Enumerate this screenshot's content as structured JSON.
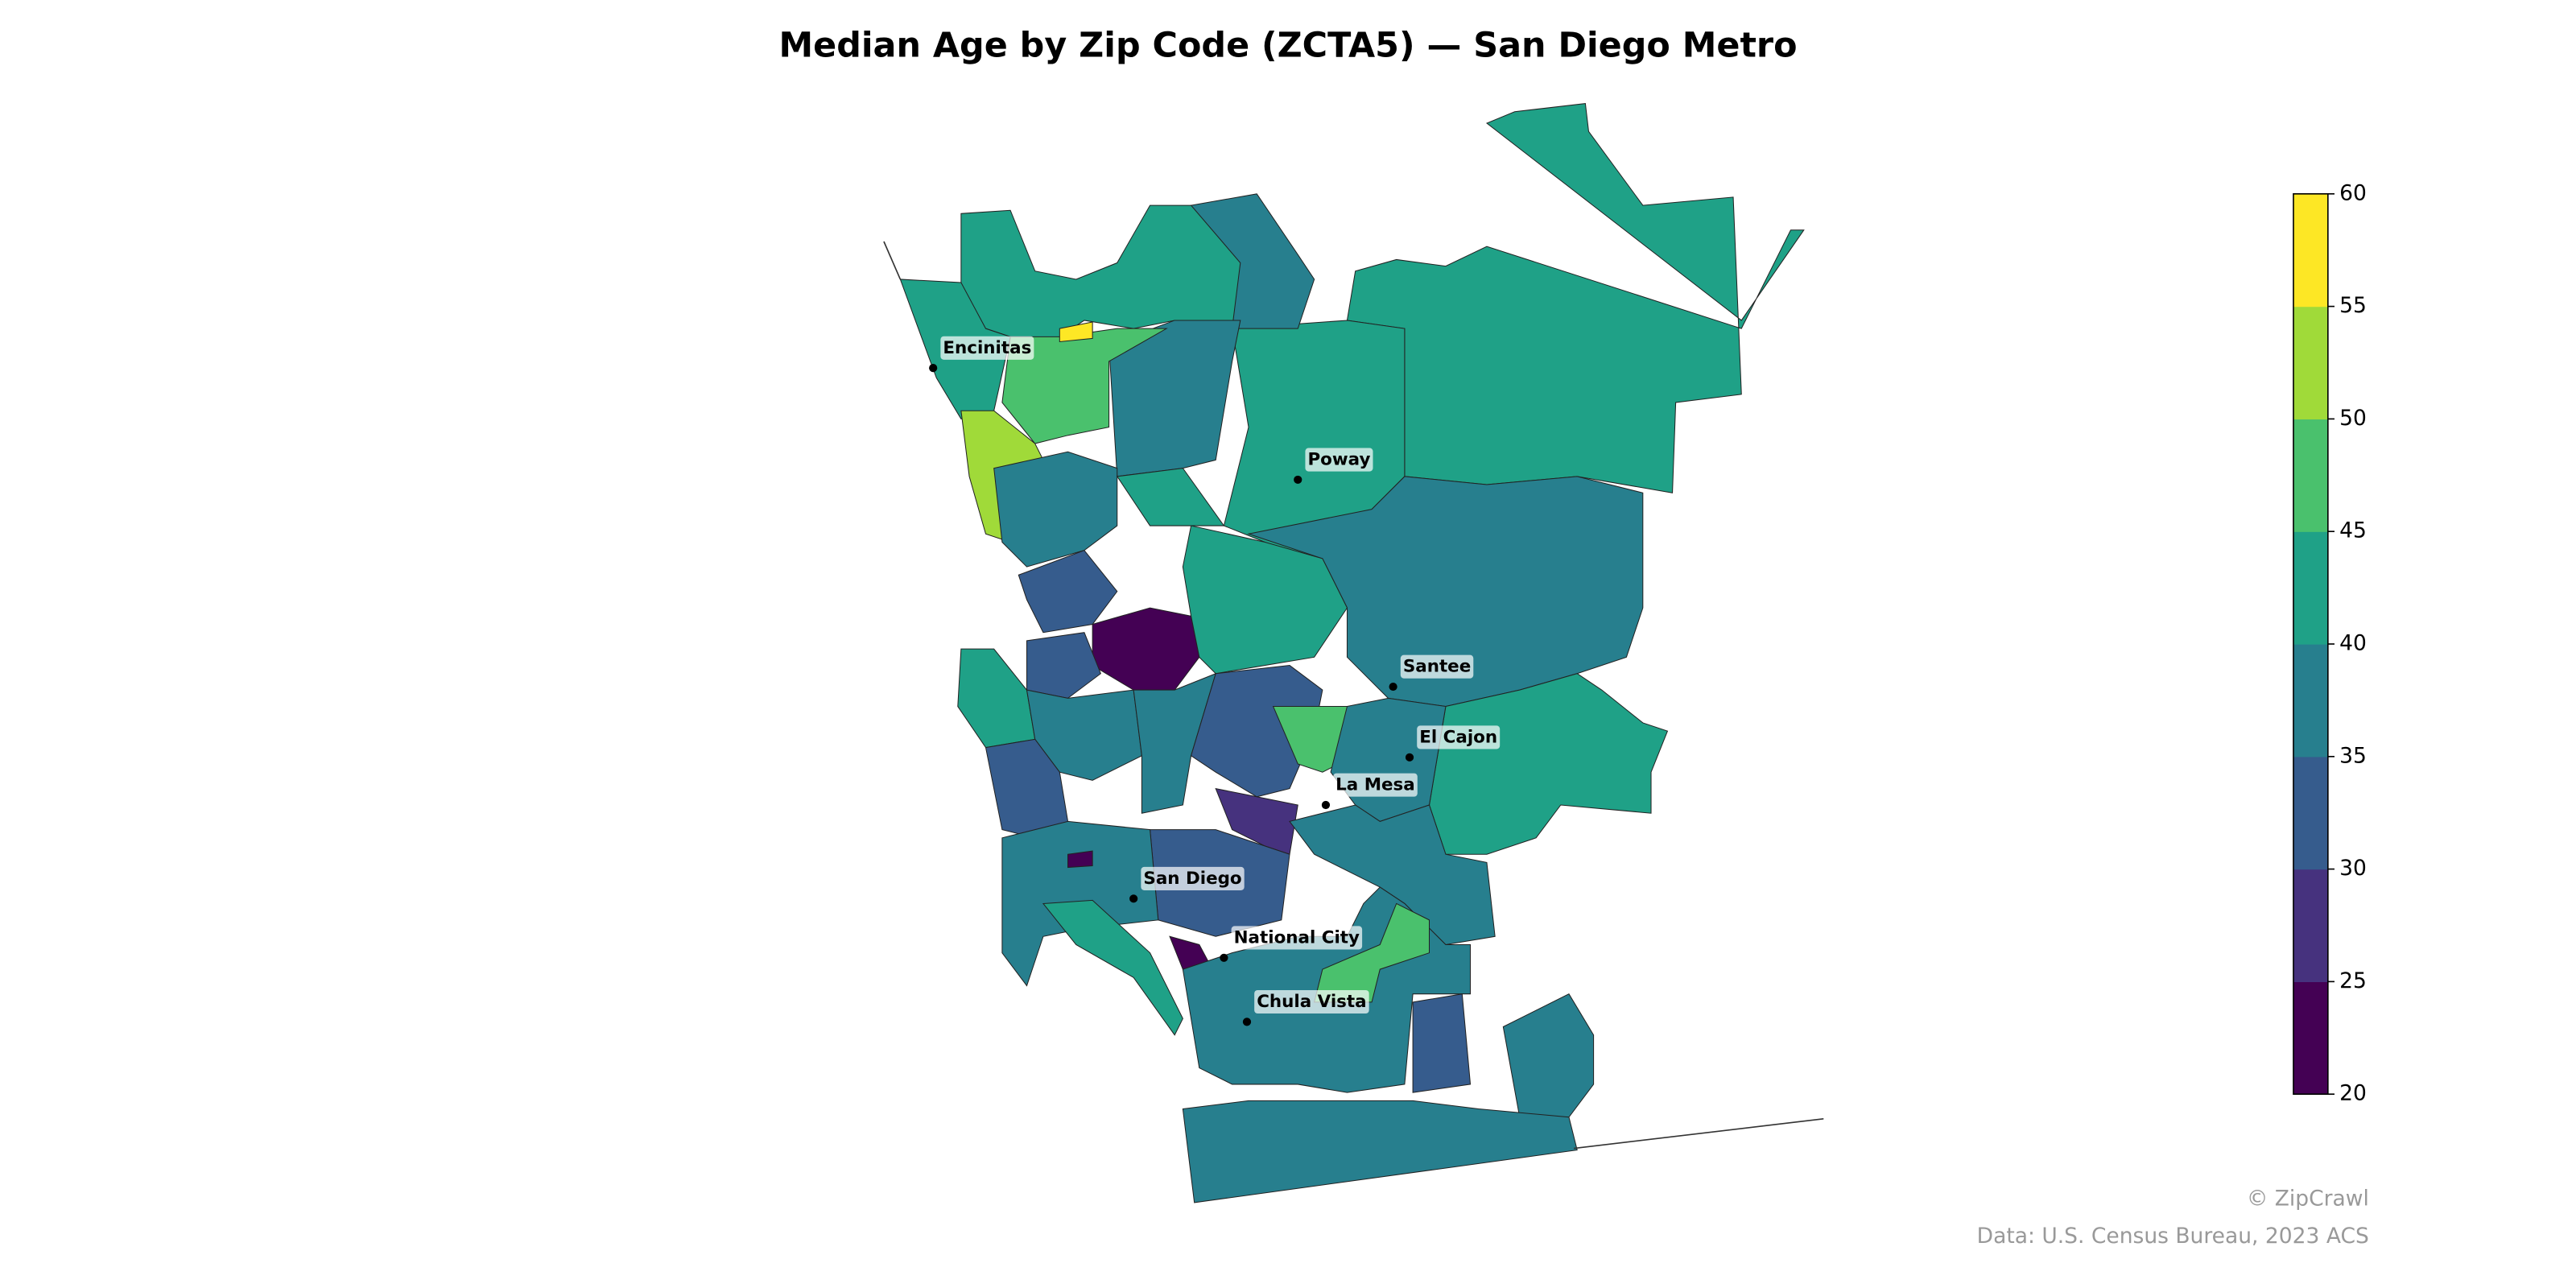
{
  "map": {
    "title": "Median Age by Zip Code (ZCTA5) — San Diego Metro",
    "colorbar": {
      "lim": [
        20,
        60
      ],
      "ticks": [
        20,
        25,
        30,
        35,
        40,
        45,
        50,
        55,
        60
      ],
      "colors": [
        "#440154",
        "#46327e",
        "#365c8d",
        "#277f8e",
        "#1fa187",
        "#4ac16d",
        "#a0da39",
        "#fde725"
      ]
    },
    "region_values": [
      42,
      42,
      42,
      37,
      37,
      47,
      57,
      42,
      52,
      37,
      42,
      32,
      22,
      37,
      42,
      42,
      32,
      37,
      37,
      32,
      32,
      47,
      42,
      37,
      27,
      37,
      32,
      37,
      22,
      42,
      22,
      37,
      47,
      32,
      37,
      37
    ],
    "places": [
      "Encinitas",
      "Poway",
      "Santee",
      "El Cajon",
      "La Mesa",
      "San Diego",
      "National City",
      "Chula Vista"
    ],
    "credits": [
      "© ZipCrawl",
      "Data: U.S. Census Bureau, 2023 ACS"
    ]
  }
}
